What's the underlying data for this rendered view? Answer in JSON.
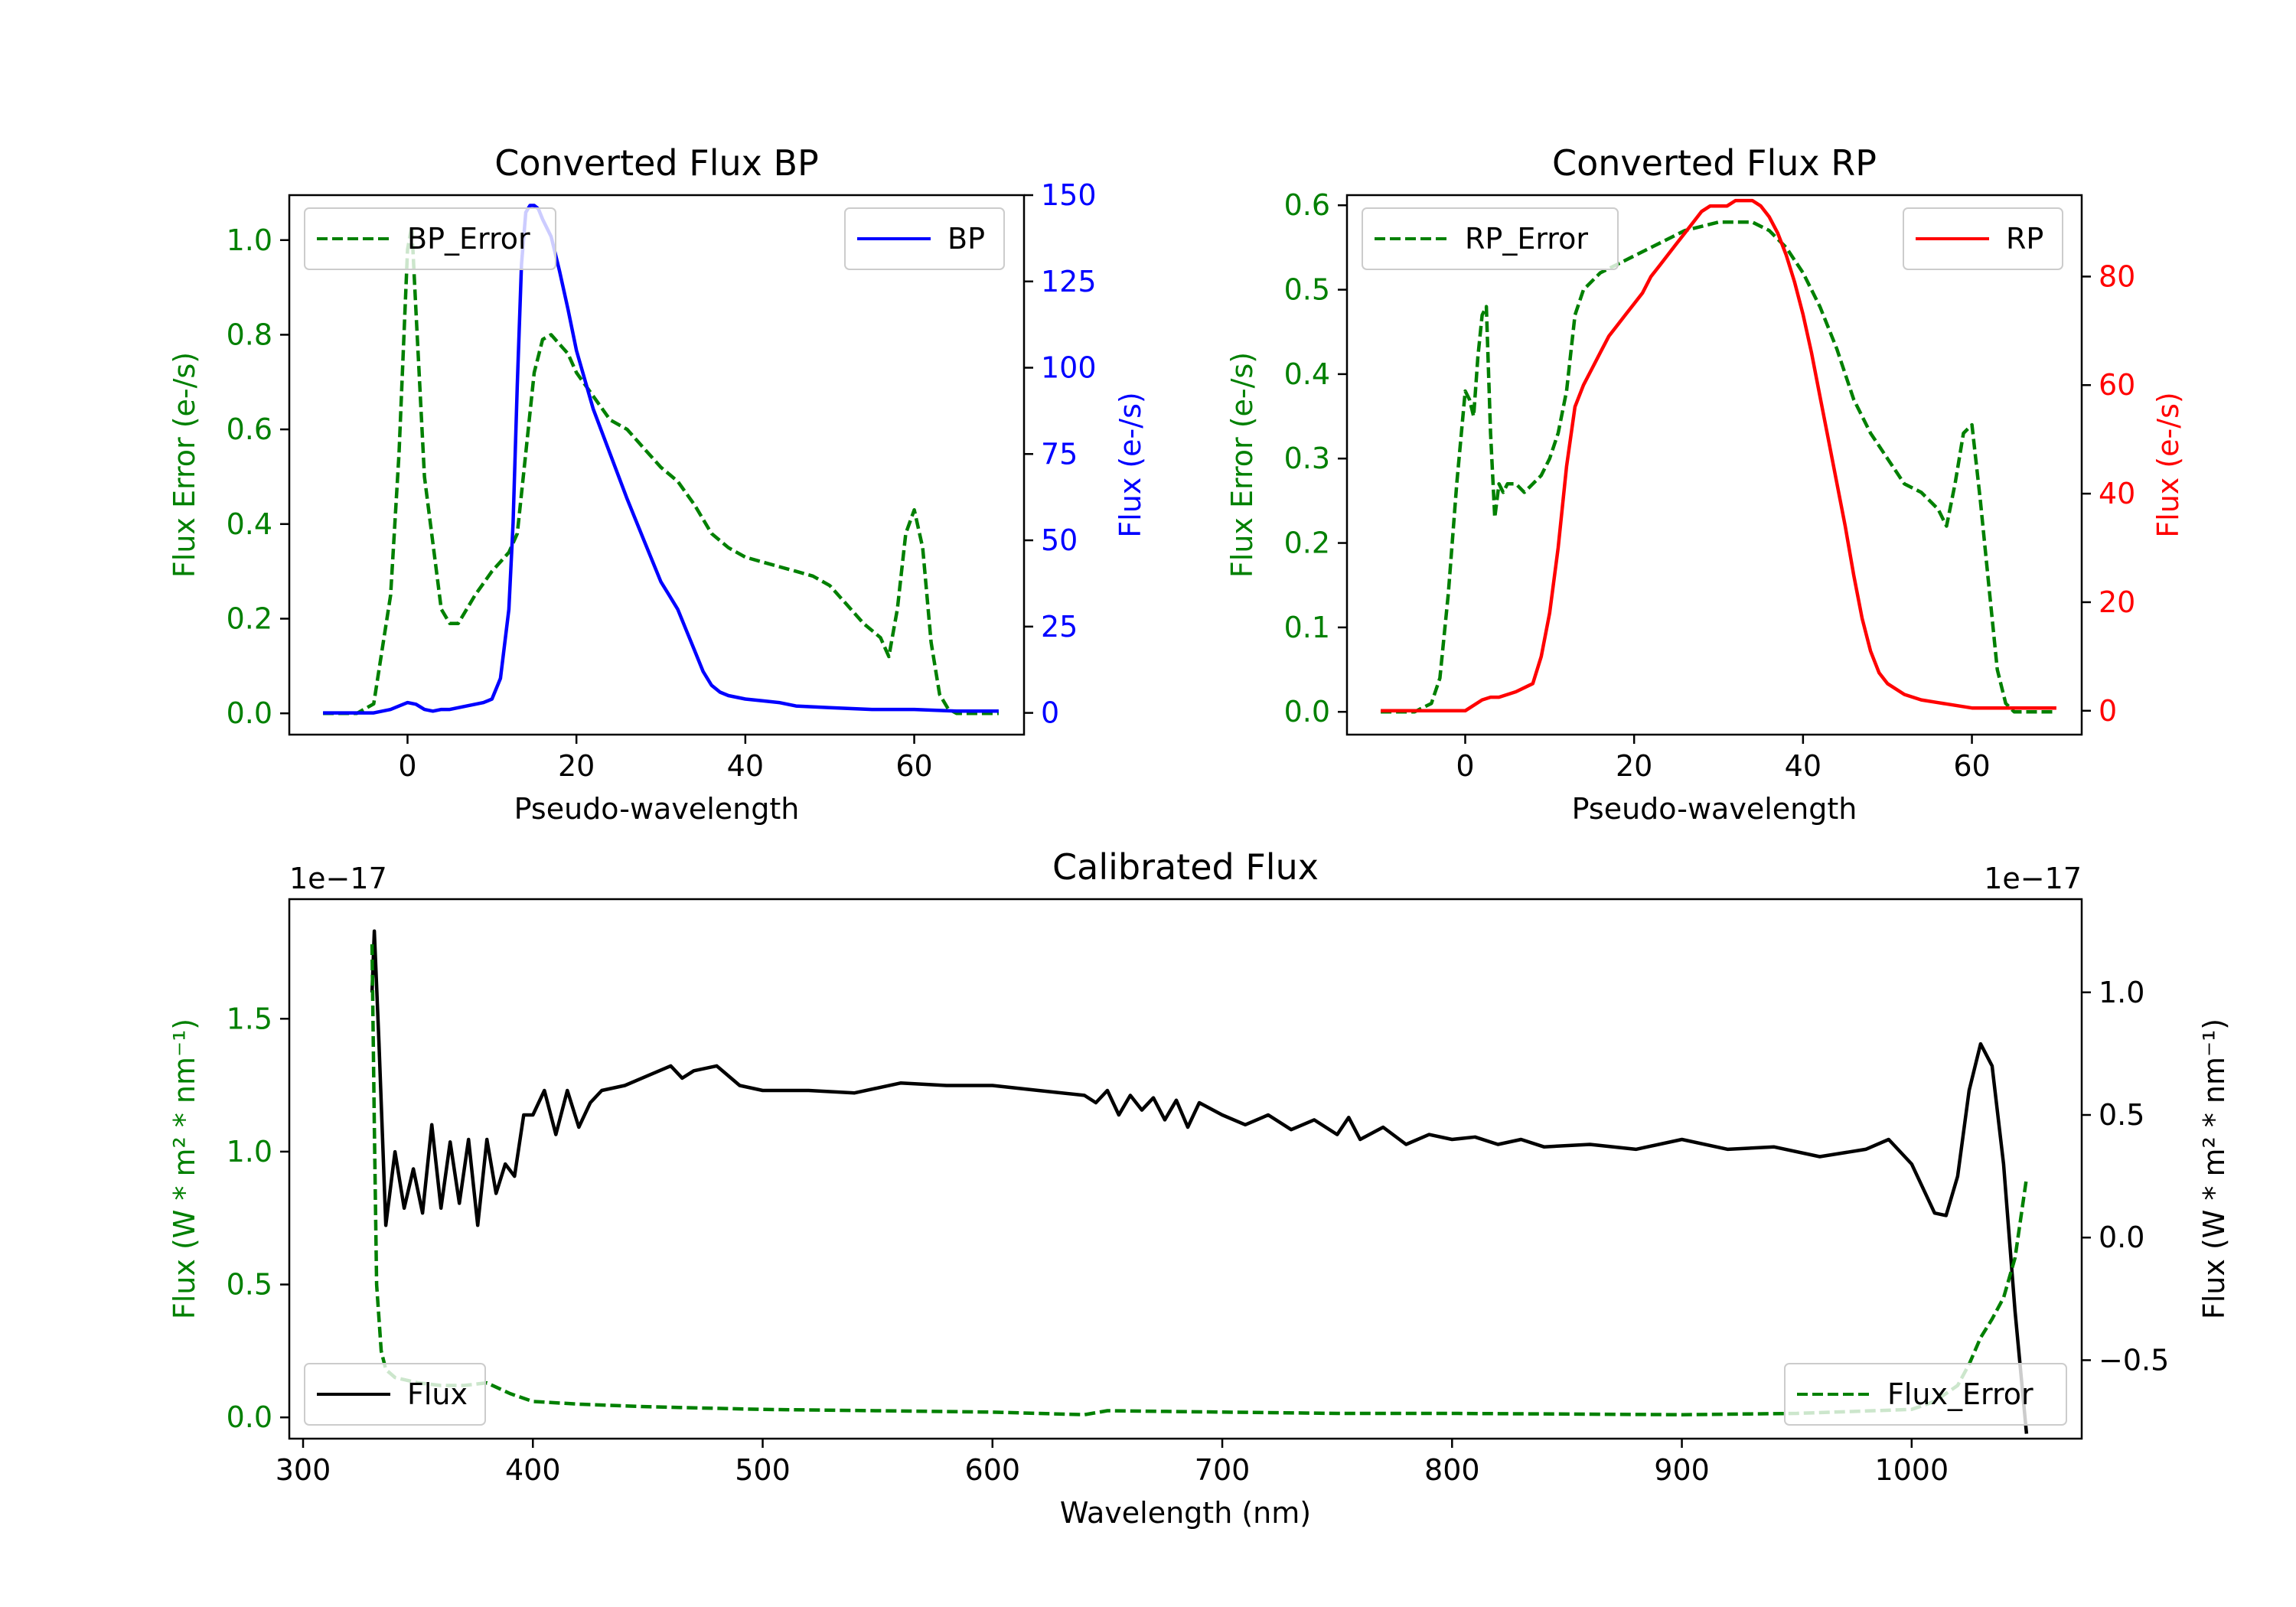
{
  "chart_data": [
    {
      "type": "line",
      "title": "Converted Flux BP",
      "xlabel": "Pseudo-wavelength",
      "ylabel_left": "Flux Error (e-/s)",
      "ylabel_right": "Flux (e-/s)",
      "xlim": [
        -14,
        73
      ],
      "ylim_left": [
        -0.045,
        1.095
      ],
      "ylim_right": [
        -6.3,
        150
      ],
      "xticks": [
        0,
        20,
        40,
        60
      ],
      "xtick_labels": [
        "0",
        "20",
        "40",
        "60"
      ],
      "yticks_left": [
        0.0,
        0.2,
        0.4,
        0.6,
        0.8,
        1.0
      ],
      "ytick_labels_left": [
        "0.0",
        "0.2",
        "0.4",
        "0.6",
        "0.8",
        "1.0"
      ],
      "yticks_right": [
        0,
        25,
        50,
        75,
        100,
        125,
        150
      ],
      "ytick_labels_right": [
        "0",
        "25",
        "50",
        "75",
        "100",
        "125",
        "150"
      ],
      "left_color": "#008000",
      "right_color": "#0000ff",
      "legend_left": "top-left",
      "legend_right": "top-right",
      "series": [
        {
          "name": "BP_Error",
          "axis": "left",
          "color": "#008000",
          "style": "dashed",
          "x": [
            -10,
            -6,
            -4,
            -2,
            -1,
            0,
            0.5,
            1,
            2,
            3,
            4,
            5,
            6,
            8,
            10,
            12,
            13,
            14,
            15,
            16,
            17,
            18,
            19,
            20,
            22,
            24,
            26,
            28,
            30,
            32,
            34,
            36,
            38,
            40,
            42,
            44,
            46,
            48,
            50,
            52,
            54,
            56,
            57,
            58,
            59,
            60,
            61,
            62,
            63,
            64,
            65,
            66,
            68,
            70
          ],
          "values": [
            0.0,
            0.0,
            0.02,
            0.25,
            0.55,
            0.98,
            1.03,
            0.85,
            0.5,
            0.36,
            0.22,
            0.19,
            0.19,
            0.25,
            0.3,
            0.34,
            0.38,
            0.55,
            0.72,
            0.79,
            0.8,
            0.78,
            0.76,
            0.72,
            0.67,
            0.62,
            0.6,
            0.56,
            0.52,
            0.49,
            0.44,
            0.38,
            0.35,
            0.33,
            0.32,
            0.31,
            0.3,
            0.29,
            0.27,
            0.23,
            0.19,
            0.16,
            0.12,
            0.22,
            0.38,
            0.43,
            0.35,
            0.15,
            0.04,
            0.01,
            0.0,
            0.0,
            0.0,
            0.0
          ]
        },
        {
          "name": "BP",
          "axis": "right",
          "color": "#0000ff",
          "style": "solid",
          "x": [
            -10,
            -6,
            -4,
            -2,
            -1,
            0,
            1,
            2,
            3,
            4,
            5,
            6,
            7,
            8,
            9,
            10,
            11,
            12,
            12.5,
            13,
            13.5,
            14,
            14.5,
            15,
            15.5,
            16,
            17,
            18,
            19,
            20,
            22,
            24,
            26,
            28,
            30,
            31,
            32,
            33,
            34,
            35,
            36,
            37,
            38,
            40,
            42,
            44,
            46,
            50,
            55,
            60,
            65,
            70
          ],
          "values": [
            0,
            0,
            0,
            1,
            2,
            3,
            2.5,
            1,
            0.5,
            1,
            1,
            1.5,
            2,
            2.5,
            3,
            4,
            10,
            30,
            55,
            95,
            130,
            145,
            147,
            147,
            146,
            143,
            138,
            128,
            117,
            105,
            88,
            75,
            62,
            50,
            38,
            34,
            30,
            24,
            18,
            12,
            8,
            6,
            5,
            4,
            3.5,
            3,
            2,
            1.5,
            1,
            1,
            0.5,
            0.5
          ]
        }
      ]
    },
    {
      "type": "line",
      "title": "Converted Flux RP",
      "xlabel": "Pseudo-wavelength",
      "ylabel_left": "Flux Error (e-/s)",
      "ylabel_right": "Flux (e-/s)",
      "xlim": [
        -14,
        73
      ],
      "ylim_left": [
        -0.027,
        0.612
      ],
      "ylim_right": [
        -4.4,
        95
      ],
      "xticks": [
        0,
        20,
        40,
        60
      ],
      "xtick_labels": [
        "0",
        "20",
        "40",
        "60"
      ],
      "yticks_left": [
        0.0,
        0.1,
        0.2,
        0.3,
        0.4,
        0.5,
        0.6
      ],
      "ytick_labels_left": [
        "0.0",
        "0.1",
        "0.2",
        "0.3",
        "0.4",
        "0.5",
        "0.6"
      ],
      "yticks_right": [
        0,
        20,
        40,
        60,
        80
      ],
      "ytick_labels_right": [
        "0",
        "20",
        "40",
        "60",
        "80"
      ],
      "left_color": "#008000",
      "right_color": "#ff0000",
      "legend_left": "top-left",
      "legend_right": "top-right",
      "series": [
        {
          "name": "RP_Error",
          "axis": "left",
          "color": "#008000",
          "style": "dashed",
          "x": [
            -10,
            -6,
            -4,
            -3,
            -2,
            -1,
            0,
            0.5,
            1,
            1.5,
            2,
            2.5,
            3,
            3.5,
            4,
            4.5,
            5,
            6,
            7,
            8,
            9,
            10,
            11,
            12,
            13,
            14,
            16,
            18,
            20,
            22,
            24,
            26,
            28,
            30,
            32,
            34,
            36,
            38,
            40,
            42,
            44,
            46,
            48,
            50,
            52,
            54,
            55,
            56,
            56.5,
            57,
            58,
            59,
            60,
            61,
            62,
            63,
            64,
            65,
            66,
            68,
            70
          ],
          "values": [
            0.0,
            0.0,
            0.01,
            0.04,
            0.14,
            0.27,
            0.38,
            0.37,
            0.35,
            0.42,
            0.47,
            0.48,
            0.33,
            0.23,
            0.27,
            0.26,
            0.27,
            0.27,
            0.26,
            0.27,
            0.28,
            0.3,
            0.33,
            0.38,
            0.47,
            0.5,
            0.52,
            0.53,
            0.54,
            0.55,
            0.56,
            0.57,
            0.575,
            0.58,
            0.58,
            0.58,
            0.57,
            0.55,
            0.52,
            0.48,
            0.43,
            0.37,
            0.33,
            0.3,
            0.27,
            0.26,
            0.25,
            0.24,
            0.23,
            0.22,
            0.27,
            0.33,
            0.34,
            0.25,
            0.15,
            0.05,
            0.01,
            0.0,
            0.0,
            0.0,
            0.0
          ]
        },
        {
          "name": "RP",
          "axis": "right",
          "color": "#ff0000",
          "style": "solid",
          "x": [
            -10,
            -6,
            -2,
            0,
            2,
            3,
            4,
            6,
            8,
            9,
            10,
            11,
            12,
            13,
            14,
            15,
            16,
            17,
            18,
            19,
            20,
            21,
            22,
            23,
            24,
            25,
            26,
            27,
            28,
            29,
            30,
            31,
            32,
            33,
            34,
            35,
            36,
            37,
            38,
            39,
            40,
            41,
            42,
            43,
            44,
            45,
            46,
            47,
            48,
            49,
            50,
            52,
            54,
            56,
            58,
            60,
            65,
            70
          ],
          "values": [
            0,
            0,
            0,
            0,
            2,
            2.5,
            2.5,
            3.5,
            5,
            10,
            18,
            30,
            45,
            56,
            60,
            63,
            66,
            69,
            71,
            73,
            75,
            77,
            80,
            82,
            84,
            86,
            88,
            90,
            92,
            93,
            93,
            93,
            94,
            94,
            94,
            93,
            91,
            88,
            84,
            79,
            73,
            66,
            58,
            50,
            42,
            34,
            25,
            17,
            11,
            7,
            5,
            3,
            2,
            1.5,
            1,
            0.5,
            0.5,
            0.5
          ]
        }
      ]
    },
    {
      "type": "line",
      "title": "Calibrated Flux",
      "xlabel": "Wavelength (nm)",
      "ylabel_left": "Flux (W * m² * nm⁻¹)",
      "ylabel_right": "Flux (W * m² * nm⁻¹)",
      "offset_left": "1e−17",
      "offset_right": "1e−17",
      "xlim": [
        294,
        1074
      ],
      "ylim_left": [
        -0.08,
        1.95
      ],
      "ylim_right": [
        -0.82,
        1.38
      ],
      "xticks": [
        300,
        400,
        500,
        600,
        700,
        800,
        900,
        1000
      ],
      "xtick_labels": [
        "300",
        "400",
        "500",
        "600",
        "700",
        "800",
        "900",
        "1000"
      ],
      "yticks_left": [
        0.0,
        0.5,
        1.0,
        1.5
      ],
      "ytick_labels_left": [
        "0.0",
        "0.5",
        "1.0",
        "1.5"
      ],
      "yticks_right": [
        -0.5,
        0.0,
        0.5,
        1.0
      ],
      "ytick_labels_right": [
        "−0.5",
        "0.0",
        "0.5",
        "1.0"
      ],
      "left_color": "#008000",
      "right_color": "#000000",
      "legend_flux": "bottom-left",
      "legend_error": "bottom-right",
      "series": [
        {
          "name": "Flux",
          "axis": "right",
          "color": "#000000",
          "style": "solid",
          "x": [
            330,
            331,
            333,
            336,
            340,
            344,
            348,
            352,
            356,
            360,
            364,
            368,
            372,
            376,
            380,
            384,
            388,
            392,
            396,
            400,
            405,
            410,
            415,
            420,
            425,
            430,
            440,
            450,
            460,
            465,
            470,
            480,
            490,
            500,
            520,
            540,
            560,
            580,
            600,
            620,
            640,
            645,
            650,
            655,
            660,
            665,
            670,
            675,
            680,
            685,
            690,
            700,
            710,
            720,
            730,
            740,
            750,
            755,
            760,
            770,
            780,
            790,
            800,
            810,
            820,
            830,
            840,
            860,
            880,
            900,
            920,
            940,
            960,
            980,
            990,
            1000,
            1010,
            1015,
            1020,
            1025,
            1030,
            1035,
            1040,
            1045,
            1050
          ],
          "values": [
            1.0,
            1.25,
            0.8,
            0.05,
            0.35,
            0.12,
            0.28,
            0.1,
            0.46,
            0.12,
            0.39,
            0.14,
            0.4,
            0.05,
            0.4,
            0.18,
            0.3,
            0.25,
            0.5,
            0.5,
            0.6,
            0.42,
            0.6,
            0.45,
            0.55,
            0.6,
            0.62,
            0.66,
            0.7,
            0.65,
            0.68,
            0.7,
            0.62,
            0.6,
            0.6,
            0.59,
            0.63,
            0.62,
            0.62,
            0.6,
            0.58,
            0.55,
            0.6,
            0.5,
            0.58,
            0.52,
            0.57,
            0.48,
            0.56,
            0.45,
            0.55,
            0.5,
            0.46,
            0.5,
            0.44,
            0.48,
            0.42,
            0.49,
            0.4,
            0.45,
            0.38,
            0.42,
            0.4,
            0.41,
            0.38,
            0.4,
            0.37,
            0.38,
            0.36,
            0.4,
            0.36,
            0.37,
            0.33,
            0.36,
            0.4,
            0.3,
            0.1,
            0.09,
            0.25,
            0.6,
            0.79,
            0.7,
            0.3,
            -0.3,
            -0.8
          ]
        },
        {
          "name": "Flux_Error",
          "axis": "left",
          "color": "#008000",
          "style": "dashed",
          "x": [
            330,
            331,
            332,
            334,
            336,
            340,
            350,
            360,
            370,
            380,
            390,
            400,
            420,
            450,
            500,
            550,
            600,
            640,
            650,
            700,
            750,
            800,
            900,
            950,
            1000,
            1010,
            1020,
            1025,
            1030,
            1035,
            1040,
            1045,
            1050
          ],
          "values": [
            1.78,
            1.1,
            0.5,
            0.25,
            0.18,
            0.15,
            0.13,
            0.12,
            0.12,
            0.13,
            0.09,
            0.06,
            0.05,
            0.04,
            0.03,
            0.025,
            0.02,
            0.01,
            0.025,
            0.02,
            0.015,
            0.015,
            0.01,
            0.015,
            0.03,
            0.06,
            0.12,
            0.2,
            0.3,
            0.37,
            0.45,
            0.6,
            0.9
          ]
        }
      ]
    }
  ]
}
